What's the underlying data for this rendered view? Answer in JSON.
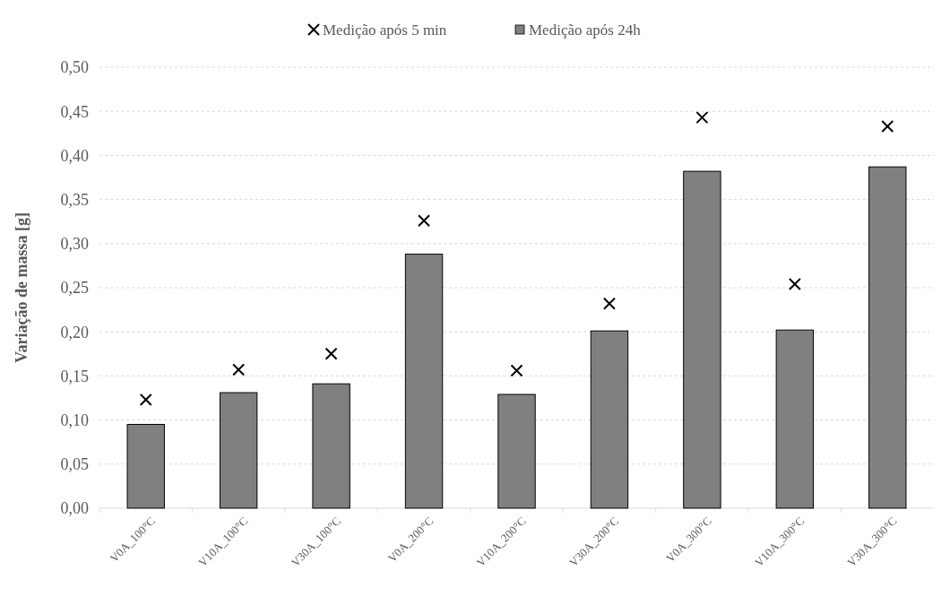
{
  "chart_data": {
    "type": "bar",
    "ylabel": "Variação de massa [g]",
    "categories": [
      "V0A_100°C",
      "V10A_100°C",
      "V30A_100°C",
      "V0A_200°C",
      "V10A_200°C",
      "V30A_200°C",
      "V0A_300°C",
      "V10A_300°C",
      "V30A_300°C"
    ],
    "series": [
      {
        "name": "Medição após 5 min",
        "type": "scatter",
        "marker": "cross",
        "color": "#000000",
        "values": [
          0.123,
          0.157,
          0.175,
          0.326,
          0.156,
          0.232,
          0.443,
          0.254,
          0.433
        ]
      },
      {
        "name": "Medição após 24h",
        "color": "#808080",
        "values": [
          0.095,
          0.131,
          0.141,
          0.288,
          0.129,
          0.201,
          0.382,
          0.202,
          0.387
        ]
      }
    ],
    "ylim": [
      0,
      0.5
    ],
    "yticks": [
      {
        "value": 0,
        "label": "0,00"
      },
      {
        "value": 0.05,
        "label": "0,05"
      },
      {
        "value": 0.1,
        "label": "0,10"
      },
      {
        "value": 0.15,
        "label": "0,15"
      },
      {
        "value": 0.2,
        "label": "0,20"
      },
      {
        "value": 0.25,
        "label": "0,25"
      },
      {
        "value": 0.3,
        "label": "0,30"
      },
      {
        "value": 0.35,
        "label": "0,35"
      },
      {
        "value": 0.4,
        "label": "0,40"
      },
      {
        "value": 0.45,
        "label": "0,45"
      },
      {
        "value": 0.5,
        "label": "0,50"
      }
    ],
    "grid": "y",
    "legend": "top"
  }
}
